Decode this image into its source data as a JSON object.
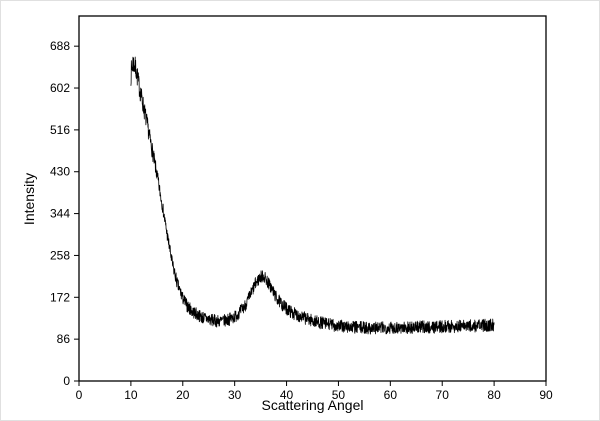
{
  "figure": {
    "background": "#ffffff",
    "plot_border_color": "#000000",
    "tick_label_color": "#000000",
    "tick_label_font_px": 12
  },
  "chart_data": {
    "type": "line",
    "title": "",
    "xlabel": "Scattering Angel",
    "ylabel": "Intensity",
    "xlim": [
      0,
      90
    ],
    "ylim": [
      0,
      750
    ],
    "xticks": [
      0,
      10,
      20,
      30,
      40,
      50,
      60,
      70,
      80,
      90
    ],
    "yticks": [
      0,
      86,
      172,
      258,
      344,
      430,
      516,
      602,
      688
    ],
    "grid": false,
    "legend": "none",
    "line_color": "#000000",
    "line_width": 0.8,
    "series": [
      {
        "name": "intensity",
        "x_start": 10,
        "x_end": 80,
        "points": 1600,
        "seed": 7,
        "noise_amplitude": 13,
        "noise_amplitude_start": 24,
        "noise_taper_end_x": 16,
        "keypoints": [
          [
            10,
            630
          ],
          [
            10.4,
            655
          ],
          [
            11,
            640
          ],
          [
            11.5,
            610
          ],
          [
            12,
            585
          ],
          [
            12.5,
            560
          ],
          [
            13,
            535
          ],
          [
            14,
            480
          ],
          [
            15,
            425
          ],
          [
            16,
            365
          ],
          [
            17,
            300
          ],
          [
            18,
            240
          ],
          [
            19,
            198
          ],
          [
            20,
            170
          ],
          [
            21,
            152
          ],
          [
            22,
            142
          ],
          [
            23,
            135
          ],
          [
            24,
            130
          ],
          [
            25,
            127
          ],
          [
            26,
            124
          ],
          [
            27,
            123
          ],
          [
            28,
            124
          ],
          [
            29,
            127
          ],
          [
            30,
            132
          ],
          [
            31,
            142
          ],
          [
            32,
            155
          ],
          [
            33,
            176
          ],
          [
            34,
            200
          ],
          [
            35,
            214
          ],
          [
            35.5,
            216
          ],
          [
            36,
            210
          ],
          [
            37,
            192
          ],
          [
            38,
            172
          ],
          [
            39,
            158
          ],
          [
            40,
            149
          ],
          [
            41,
            141
          ],
          [
            42,
            136
          ],
          [
            43,
            131
          ],
          [
            44,
            128
          ],
          [
            45,
            124
          ],
          [
            46,
            121
          ],
          [
            47,
            119
          ],
          [
            48,
            117
          ],
          [
            49,
            115
          ],
          [
            50,
            113
          ],
          [
            52,
            111
          ],
          [
            54,
            110
          ],
          [
            56,
            109
          ],
          [
            58,
            109
          ],
          [
            60,
            110
          ],
          [
            62,
            110
          ],
          [
            64,
            110
          ],
          [
            66,
            111
          ],
          [
            68,
            111
          ],
          [
            70,
            112
          ],
          [
            72,
            112
          ],
          [
            74,
            113
          ],
          [
            76,
            113
          ],
          [
            78,
            114
          ],
          [
            80,
            115
          ]
        ]
      }
    ]
  }
}
